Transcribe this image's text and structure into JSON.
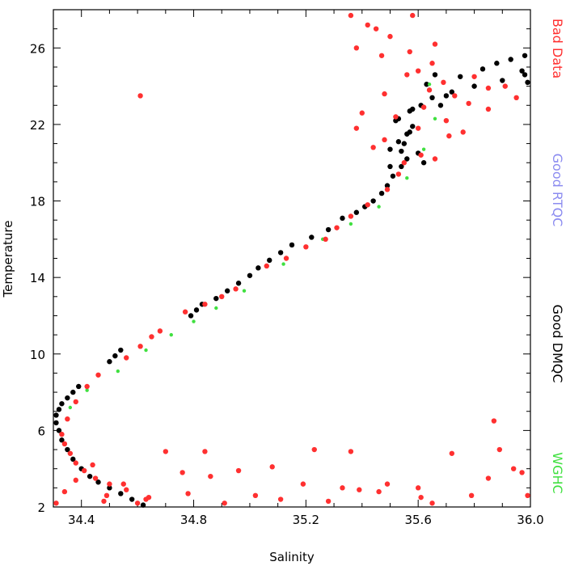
{
  "chart_data": {
    "type": "scatter",
    "title": "",
    "xlabel": "Salinity",
    "ylabel": "Temperature",
    "xlim": [
      34.3,
      36.0
    ],
    "ylim": [
      2,
      28
    ],
    "xticks": [
      "34.4",
      "34.8",
      "35.2",
      "35.6",
      "36.0"
    ],
    "xtick_values": [
      34.4,
      34.8,
      35.2,
      35.6,
      36.0
    ],
    "yticks": [
      "2",
      "6",
      "10",
      "14",
      "18",
      "22",
      "26"
    ],
    "ytick_values": [
      2,
      6,
      10,
      14,
      18,
      22,
      26
    ],
    "grid": false,
    "legend_placement": "right-vertical",
    "legend": [
      {
        "label": "Bad Data",
        "color": "#ff3030"
      },
      {
        "label": "Good RTQC",
        "color": "#8c8cf0"
      },
      {
        "label": "Good DMQC",
        "color": "#000000"
      },
      {
        "label": "WGHC",
        "color": "#40e040"
      }
    ],
    "series": [
      {
        "name": "Good DMQC",
        "color": "#000000",
        "x": [
          34.62,
          34.58,
          34.54,
          34.5,
          34.46,
          34.43,
          34.4,
          34.37,
          34.35,
          34.33,
          34.32,
          34.31,
          34.31,
          34.32,
          34.33,
          34.35,
          34.37,
          34.39,
          34.5,
          34.52,
          34.54,
          34.79,
          34.81,
          34.83,
          34.88,
          34.92,
          34.96,
          35.0,
          35.03,
          35.07,
          35.11,
          35.15,
          35.22,
          35.28,
          35.33,
          35.38,
          35.41,
          35.44,
          35.47,
          35.49,
          35.51,
          35.54,
          35.56,
          35.5,
          35.53,
          35.56,
          35.58,
          35.53,
          35.57,
          35.61,
          35.65,
          35.72,
          35.8,
          35.9,
          35.98,
          35.63,
          35.66,
          35.58,
          35.52,
          35.55,
          35.6,
          35.62,
          35.68,
          35.7,
          35.75,
          35.83,
          35.88,
          35.93,
          35.97,
          35.99,
          35.98,
          35.5,
          35.54,
          35.57
        ],
        "y": [
          2.1,
          2.4,
          2.7,
          3.0,
          3.3,
          3.6,
          4.0,
          4.5,
          5.0,
          5.5,
          6.0,
          6.4,
          6.8,
          7.1,
          7.4,
          7.7,
          8.0,
          8.3,
          9.6,
          9.9,
          10.2,
          12.0,
          12.3,
          12.6,
          12.9,
          13.3,
          13.7,
          14.1,
          14.5,
          14.9,
          15.3,
          15.7,
          16.1,
          16.5,
          17.1,
          17.4,
          17.7,
          18.0,
          18.4,
          18.8,
          19.3,
          19.8,
          20.2,
          20.7,
          21.1,
          21.5,
          21.9,
          22.3,
          22.7,
          23.0,
          23.4,
          23.7,
          24.0,
          24.3,
          24.6,
          24.1,
          24.6,
          22.8,
          22.2,
          21.0,
          20.5,
          20.0,
          23.0,
          23.5,
          24.5,
          24.9,
          25.2,
          25.4,
          24.8,
          24.2,
          25.6,
          19.8,
          20.6,
          21.6
        ]
      },
      {
        "name": "WGHC",
        "color": "#40e040",
        "x": [
          34.36,
          34.42,
          34.53,
          34.63,
          34.72,
          34.8,
          34.88,
          34.98,
          35.12,
          35.26,
          35.36,
          35.46,
          35.56,
          35.62,
          35.66,
          35.64
        ],
        "y": [
          7.2,
          8.1,
          9.1,
          10.2,
          11.0,
          11.7,
          12.4,
          13.3,
          14.7,
          16.0,
          16.8,
          17.7,
          19.2,
          20.7,
          22.3,
          24.1
        ]
      },
      {
        "name": "Bad Data",
        "color": "#ff3030",
        "x": [
          34.6,
          34.64,
          34.56,
          34.5,
          34.45,
          34.41,
          34.38,
          34.36,
          34.34,
          34.33,
          34.35,
          34.38,
          34.42,
          34.46,
          34.56,
          34.61,
          34.65,
          34.68,
          34.77,
          34.84,
          34.9,
          34.95,
          35.06,
          35.13,
          35.2,
          35.27,
          35.31,
          35.36,
          35.42,
          35.49,
          35.53,
          35.55,
          35.61,
          35.38,
          35.45,
          35.58,
          35.47,
          35.66,
          35.6,
          35.64,
          35.69,
          35.73,
          35.78,
          35.85,
          35.91,
          35.95,
          35.52,
          35.6,
          35.48,
          35.44,
          35.7,
          35.76,
          35.62,
          35.56,
          35.4,
          35.38,
          35.48,
          35.65,
          35.8,
          35.85,
          35.71,
          35.66,
          35.36,
          35.42,
          35.5,
          35.57,
          34.61,
          34.31,
          34.34,
          34.38,
          34.44,
          34.49,
          34.55,
          34.63,
          34.7,
          34.76,
          34.78,
          34.84,
          34.86,
          34.91,
          34.96,
          35.02,
          35.08,
          35.11,
          35.19,
          35.23,
          35.28,
          35.33,
          35.36,
          35.39,
          35.46,
          35.49,
          35.6,
          35.61,
          35.65,
          35.72,
          35.79,
          35.85,
          35.87,
          35.89,
          35.94,
          35.97,
          35.99,
          34.48
        ],
        "y": [
          2.2,
          2.5,
          2.9,
          3.2,
          3.5,
          3.9,
          4.3,
          4.8,
          5.3,
          5.8,
          6.6,
          7.5,
          8.3,
          8.9,
          9.8,
          10.4,
          10.9,
          11.2,
          12.2,
          12.6,
          13.0,
          13.4,
          14.6,
          15.0,
          15.6,
          16.0,
          16.6,
          17.2,
          17.8,
          18.6,
          19.4,
          20.0,
          20.4,
          26.0,
          27.0,
          27.7,
          25.6,
          26.2,
          24.8,
          23.8,
          24.2,
          23.5,
          23.1,
          22.8,
          24.0,
          23.4,
          22.4,
          21.8,
          21.2,
          20.8,
          22.2,
          21.6,
          22.9,
          24.6,
          22.6,
          21.8,
          23.6,
          25.2,
          24.5,
          23.9,
          21.4,
          20.2,
          27.7,
          27.2,
          26.6,
          25.8,
          23.5,
          2.2,
          2.8,
          3.4,
          4.2,
          2.6,
          3.2,
          2.4,
          4.9,
          3.8,
          2.7,
          4.9,
          3.6,
          2.2,
          3.9,
          2.6,
          4.1,
          2.4,
          3.2,
          5.0,
          2.3,
          3.0,
          4.9,
          2.9,
          2.8,
          3.2,
          3.0,
          2.5,
          2.2,
          4.8,
          2.6,
          3.5,
          6.5,
          5.0,
          4.0,
          3.8,
          2.6,
          2.3
        ]
      }
    ]
  }
}
